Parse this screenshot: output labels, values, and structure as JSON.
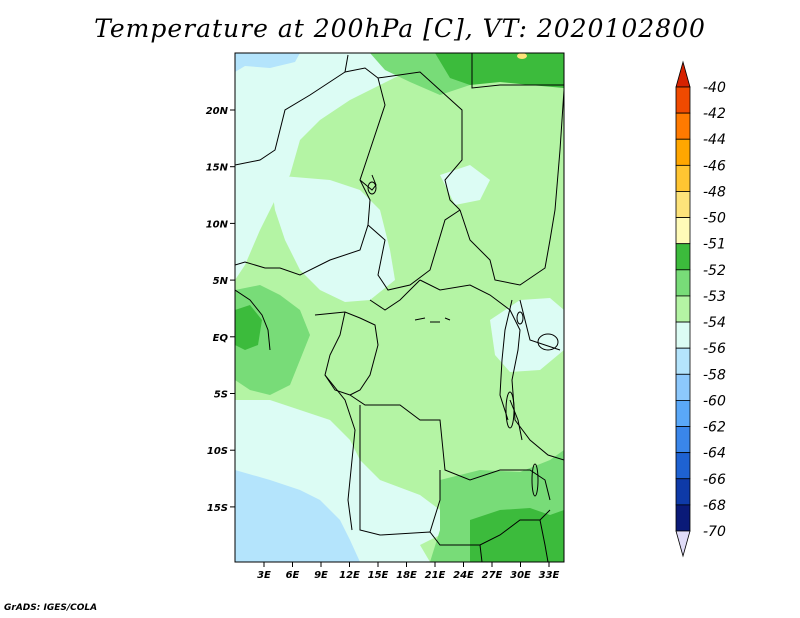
{
  "title": "Temperature at 200hPa [C], VT: 2020102800",
  "footer": "GrADS: IGES/COLA",
  "lat_labels": [
    "20N",
    "15N",
    "10N",
    "5N",
    "EQ",
    "5S",
    "10S",
    "15S"
  ],
  "lon_labels": [
    "3E",
    "6E",
    "9E",
    "12E",
    "15E",
    "18E",
    "21E",
    "24E",
    "27E",
    "30E",
    "33E"
  ],
  "colorbar": {
    "labels": [
      "-40",
      "-42",
      "-44",
      "-46",
      "-48",
      "-50",
      "-51",
      "-52",
      "-53",
      "-54",
      "-56",
      "-58",
      "-60",
      "-62",
      "-64",
      "-66",
      "-68",
      "-70"
    ],
    "colors": [
      "#d62200",
      "#f04a00",
      "#ff7a00",
      "#ffa600",
      "#ffc532",
      "#fde37a",
      "#fffbb8",
      "#3cbb3c",
      "#78dc78",
      "#b4f4a4",
      "#dcfcf4",
      "#b4e4fc",
      "#8cc8fc",
      "#5aa8f8",
      "#3a86ea",
      "#1e62d2",
      "#0e3aa8",
      "#0a1a78",
      "#e0dcf8"
    ]
  },
  "map_colors": {
    "very_pale_cyan": "#dcfcf4",
    "light_blue": "#b4e4fc",
    "pale_green": "#b4f4a4",
    "mid_green": "#78dc78",
    "dark_green": "#3cbb3c",
    "pale_yellow": "#fde37a"
  }
}
